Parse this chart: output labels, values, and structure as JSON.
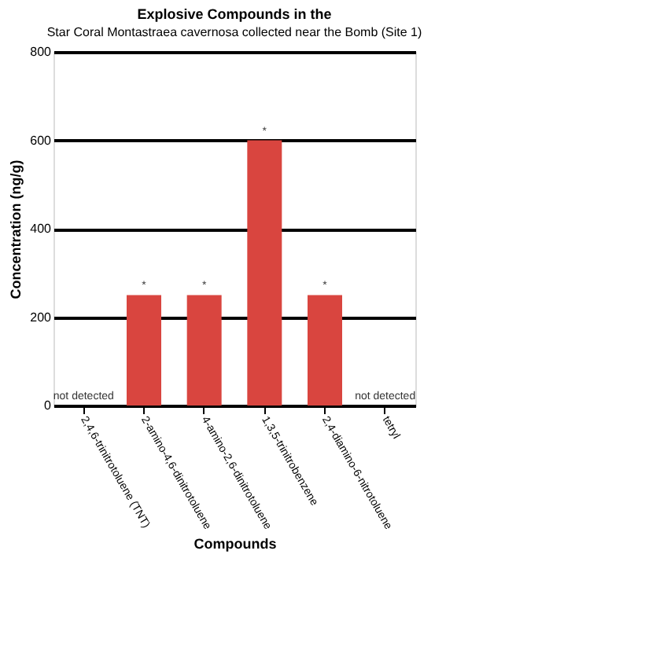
{
  "chart_data": {
    "type": "bar",
    "title": "Explosive Compounds in the",
    "subtitle": "Star Coral Montastraea cavernosa collected near the Bomb (Site 1)",
    "categories": [
      "2,4,6-trinitrotoluene (TNT)",
      "2-amino-4,6-dinitrotoluene",
      "4-amino-2,6-dinitrotoluene",
      "1,3,5-trinitrobenzene",
      "2,4-diamino-6-nitrotoluene",
      "tetryl"
    ],
    "values": [
      null,
      250,
      250,
      600,
      250,
      null
    ],
    "value_labels": [
      "not detected",
      "*",
      "*",
      "*",
      "*",
      "not detected"
    ],
    "color": "#d9453f",
    "ylim": [
      0,
      800
    ],
    "yticks": [
      0,
      200,
      400,
      600,
      800
    ],
    "grid": "y",
    "xlabel": "Compounds",
    "ylabel": "Concentration (ng/g)"
  }
}
